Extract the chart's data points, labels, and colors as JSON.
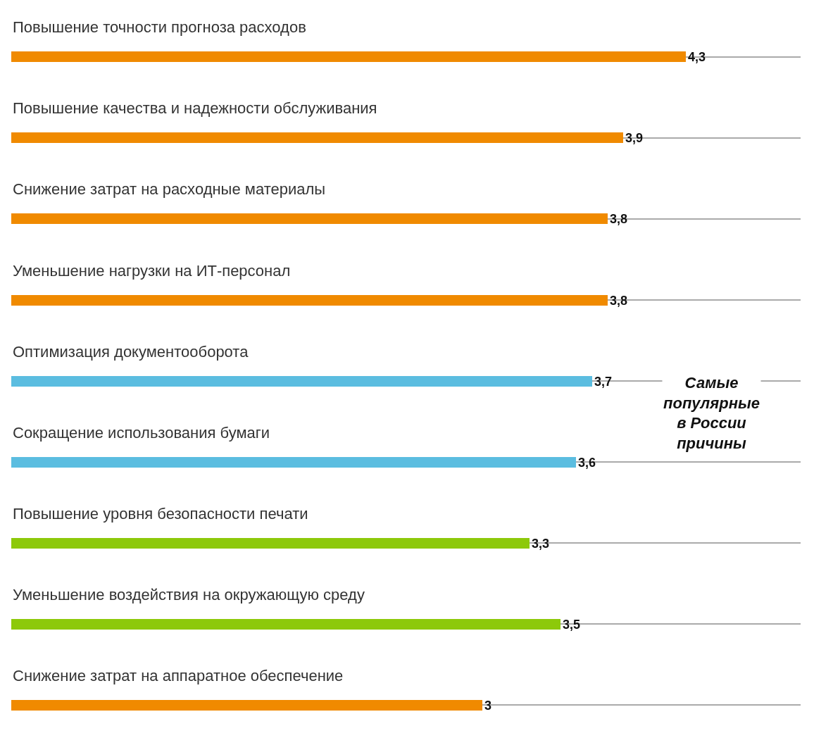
{
  "chart_data": {
    "type": "bar",
    "orientation": "horizontal",
    "categories": [
      "Повышение точности прогноза расходов",
      "Повышение качества и надежности обслуживания",
      "Снижение затрат на расходные материалы",
      "Уменьшение нагрузки на ИТ-персонал",
      "Оптимизация документооборота",
      "Сокращение использования бумаги",
      "Повышение уровня безопасности печати",
      "Уменьшение воздействия на окружающую среду",
      "Снижение затрат на аппаратное обеспечение"
    ],
    "values": [
      4.3,
      3.9,
      3.8,
      3.8,
      3.7,
      3.6,
      3.3,
      3.5,
      3
    ],
    "colors": [
      "#f08a00",
      "#f08a00",
      "#f08a00",
      "#f08a00",
      "#5bbde0",
      "#5bbde0",
      "#8dc90a",
      "#8dc90a",
      "#f08a00"
    ],
    "value_labels": [
      "4,3",
      "3,9",
      "3,8",
      "3,8",
      "3,7",
      "3,6",
      "3,3",
      "3,5",
      "3"
    ],
    "grid": "y",
    "legend": false,
    "annotations": [
      "Самые популярные в России причины"
    ]
  }
}
